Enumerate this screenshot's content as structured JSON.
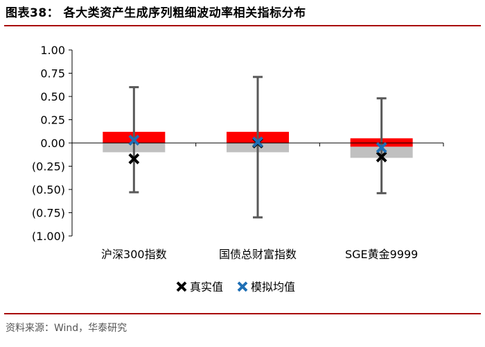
{
  "header": {
    "title": "图表38：  各大类资产生成序列粗细波动率相关指标分布"
  },
  "footer": {
    "source": "资料来源：Wind，华泰研究"
  },
  "colors": {
    "rule": "#a80000",
    "upper_box": "#ff0000",
    "lower_box": "#c0c0c0",
    "whisker": "#595959",
    "true_marker": "#000000",
    "sim_marker": "#1f6fb5",
    "axis": "#000000"
  },
  "chart_data": {
    "type": "box",
    "title": "",
    "xlabel": "",
    "ylabel": "",
    "ylim": [
      -1.0,
      1.0
    ],
    "yticks": [
      1.0,
      0.75,
      0.5,
      0.25,
      0.0,
      -0.25,
      -0.5,
      -0.75,
      -1.0
    ],
    "ytick_labels": [
      "1.00",
      "0.75",
      "0.50",
      "0.25",
      "0.00",
      "(0.25)",
      "(0.50)",
      "(0.75)",
      "(1.00)"
    ],
    "categories": [
      "沪深300指数",
      "国债总财富指数",
      "SGE黄金9999"
    ],
    "series": [
      {
        "category": "沪深300指数",
        "whisker_max": 0.6,
        "whisker_min": -0.53,
        "box_top": 0.12,
        "box_mid": 0.0,
        "box_bottom": -0.1,
        "true_value": -0.17,
        "sim_mean": 0.03
      },
      {
        "category": "国债总财富指数",
        "whisker_max": 0.71,
        "whisker_min": -0.8,
        "box_top": 0.12,
        "box_mid": 0.0,
        "box_bottom": -0.1,
        "true_value": 0.0,
        "sim_mean": 0.01
      },
      {
        "category": "SGE黄金9999",
        "whisker_max": 0.48,
        "whisker_min": -0.54,
        "box_top": 0.05,
        "box_mid": -0.04,
        "box_bottom": -0.16,
        "true_value": -0.15,
        "sim_mean": -0.05
      }
    ],
    "legend": {
      "placement": "bottom",
      "items": [
        {
          "label": "真实值",
          "marker": "x",
          "color": "#000000"
        },
        {
          "label": "模拟均值",
          "marker": "x",
          "color": "#1f6fb5"
        }
      ]
    },
    "grid": false
  }
}
